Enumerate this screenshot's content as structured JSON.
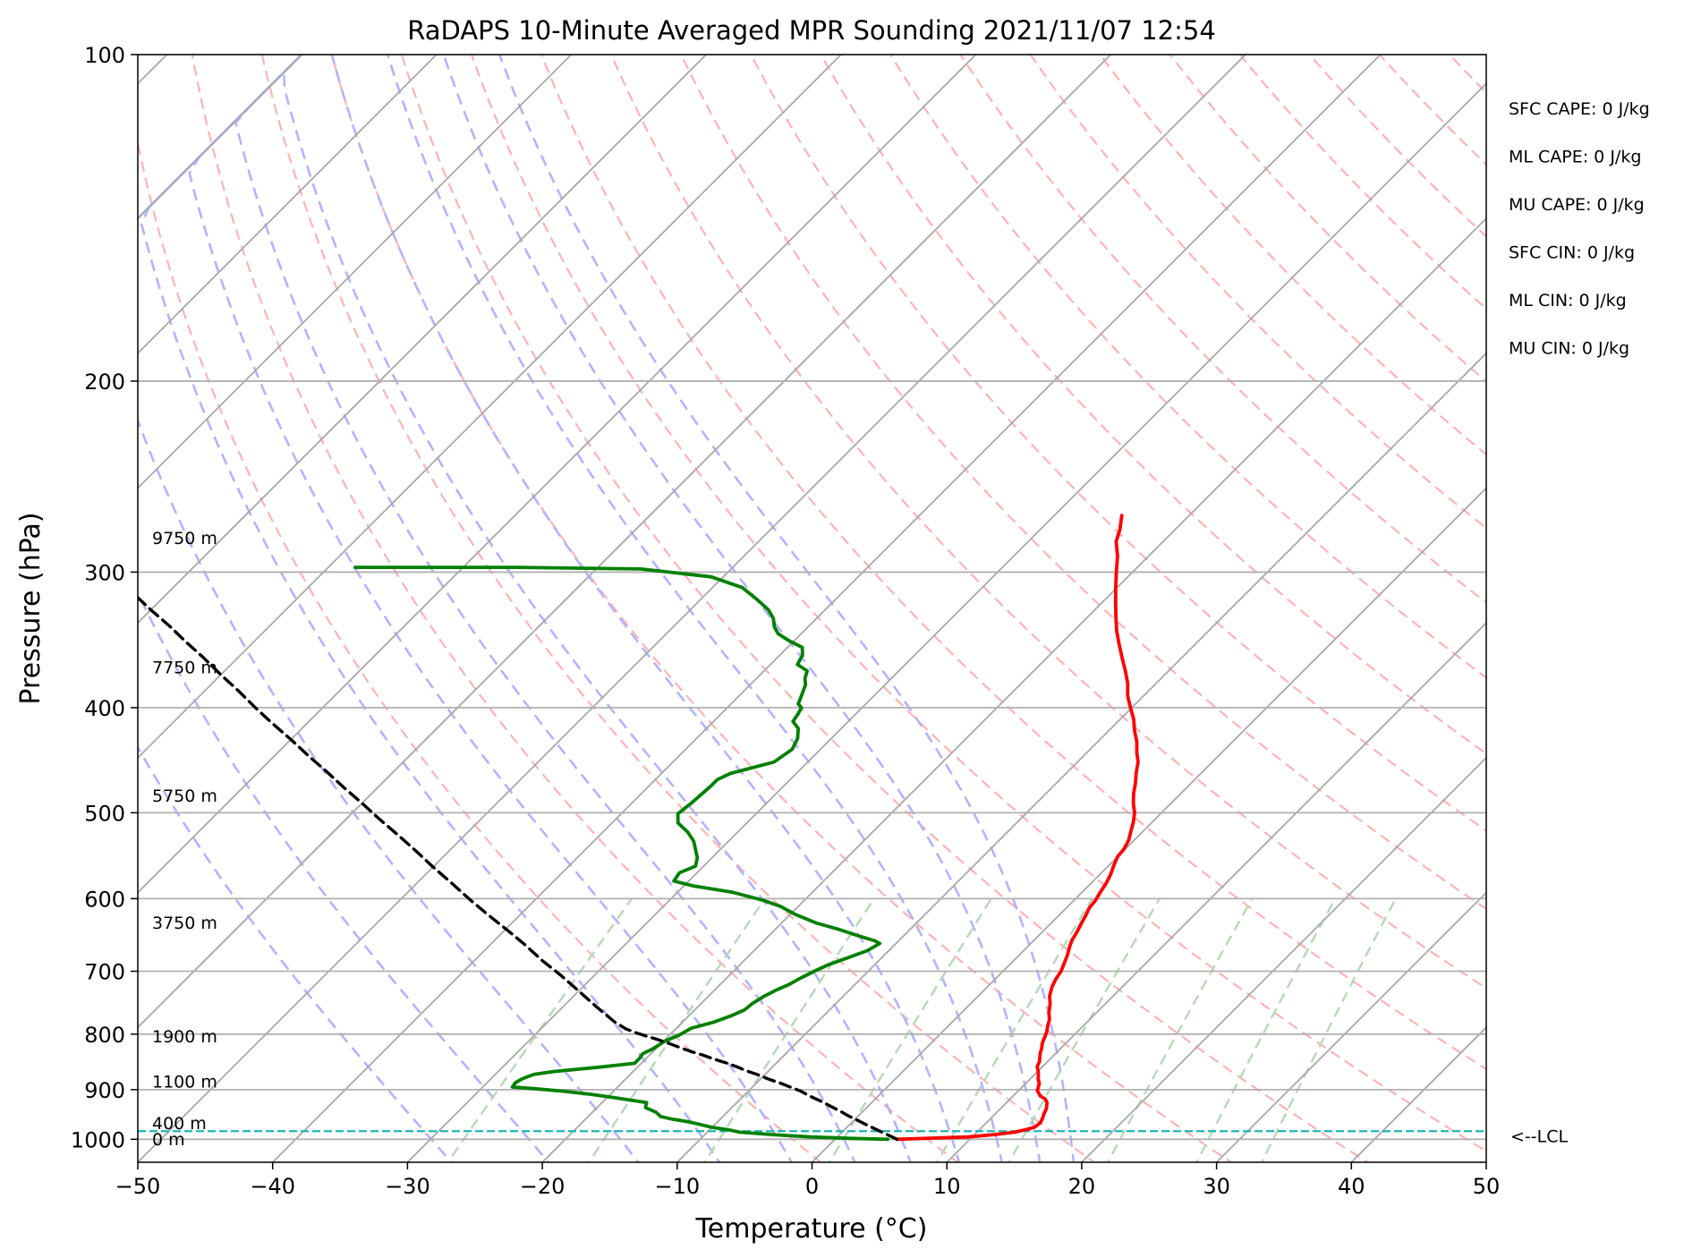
{
  "chart_data": {
    "type": "line",
    "title": "RaDAPS 10-Minute Averaged MPR Sounding 2021/11/07 12:54",
    "xlabel": "Temperature (°C)",
    "ylabel": "Pressure (hPa)",
    "xlim": [
      -50,
      50
    ],
    "ylim": [
      1050,
      100
    ],
    "y_scale": "log",
    "x_ticks": [
      -50,
      -40,
      -30,
      -20,
      -10,
      0,
      10,
      20,
      30,
      40,
      50
    ],
    "x_tick_labels": [
      "−50",
      "−40",
      "−30",
      "−20",
      "−10",
      "0",
      "10",
      "20",
      "30",
      "40",
      "50"
    ],
    "y_ticks": [
      1000,
      900,
      800,
      700,
      600,
      500,
      400,
      300,
      200,
      100
    ],
    "y_tick_labels": [
      "1000",
      "900",
      "800",
      "700",
      "600",
      "500",
      "400",
      "300",
      "200",
      "100"
    ],
    "grid": true,
    "skew": true,
    "series": [
      {
        "role": "temperature",
        "color": "#ff0000",
        "points": [
          [
            4.6,
            1000
          ],
          [
            9.7,
            995
          ],
          [
            11.5,
            990
          ],
          [
            12.8,
            985
          ],
          [
            13.4,
            980
          ],
          [
            13.9,
            975
          ],
          [
            14.0,
            965
          ],
          [
            13.8,
            955
          ],
          [
            13.6,
            947
          ],
          [
            13.4,
            937
          ],
          [
            13.0,
            925
          ],
          [
            12.6,
            918
          ],
          [
            12.0,
            912
          ],
          [
            11.4,
            902
          ],
          [
            11.2,
            895
          ],
          [
            11.0,
            888
          ],
          [
            10.6,
            880
          ],
          [
            10.3,
            872
          ],
          [
            10.0,
            865
          ],
          [
            9.6,
            857
          ],
          [
            9.4,
            848
          ],
          [
            9.1,
            840
          ],
          [
            8.8,
            832
          ],
          [
            8.6,
            825
          ],
          [
            8.3,
            817
          ],
          [
            8.1,
            810
          ],
          [
            7.9,
            802
          ],
          [
            7.7,
            795
          ],
          [
            7.4,
            787
          ],
          [
            7.0,
            775
          ],
          [
            6.5,
            765
          ],
          [
            5.9,
            750
          ],
          [
            5.3,
            738
          ],
          [
            4.8,
            724
          ],
          [
            4.5,
            712
          ],
          [
            4.3,
            700
          ],
          [
            4.0,
            690
          ],
          [
            3.6,
            677
          ],
          [
            3.1,
            664
          ],
          [
            2.8,
            655
          ],
          [
            2.6,
            645
          ],
          [
            2.3,
            634
          ],
          [
            2.0,
            622
          ],
          [
            1.7,
            612
          ],
          [
            1.6,
            602
          ],
          [
            1.4,
            594
          ],
          [
            1.1,
            580
          ],
          [
            0.8,
            570
          ],
          [
            0.4,
            560
          ],
          [
            0.0,
            549
          ],
          [
            -0.1,
            540
          ],
          [
            -0.4,
            530
          ],
          [
            -0.9,
            520
          ],
          [
            -1.4,
            510
          ],
          [
            -2.0,
            500
          ],
          [
            -2.8,
            490
          ],
          [
            -3.5,
            480
          ],
          [
            -4.1,
            470
          ],
          [
            -4.8,
            460
          ],
          [
            -5.5,
            449
          ],
          [
            -6.3,
            440
          ],
          [
            -7.1,
            430
          ],
          [
            -8.1,
            420
          ],
          [
            -9.0,
            410
          ],
          [
            -10.1,
            400
          ],
          [
            -11.2,
            390
          ],
          [
            -12.1,
            380
          ],
          [
            -13.2,
            370
          ],
          [
            -14.4,
            360
          ],
          [
            -15.6,
            350
          ],
          [
            -16.8,
            340
          ],
          [
            -17.9,
            330
          ],
          [
            -19.0,
            320
          ],
          [
            -20.1,
            310
          ],
          [
            -21.2,
            300
          ],
          [
            -22.3,
            290
          ],
          [
            -23.5,
            281
          ],
          [
            -24.1,
            274
          ],
          [
            -25.0,
            266
          ]
        ]
      },
      {
        "role": "dewpoint",
        "color": "#008000",
        "points": [
          [
            3.9,
            1000
          ],
          [
            1.1,
            998
          ],
          [
            -2.0,
            995
          ],
          [
            -5.1,
            990
          ],
          [
            -7.6,
            985
          ],
          [
            -8.6,
            980
          ],
          [
            -10.0,
            975
          ],
          [
            -11.3,
            968
          ],
          [
            -12.3,
            963
          ],
          [
            -13.6,
            958
          ],
          [
            -14.6,
            953
          ],
          [
            -15.3,
            944
          ],
          [
            -16.4,
            935
          ],
          [
            -16.7,
            925
          ],
          [
            -19.6,
            915
          ],
          [
            -21.4,
            909
          ],
          [
            -23.7,
            903
          ],
          [
            -26.1,
            898
          ],
          [
            -27.8,
            895
          ],
          [
            -27.9,
            887
          ],
          [
            -27.7,
            880
          ],
          [
            -27.4,
            875
          ],
          [
            -27.1,
            871
          ],
          [
            -25.9,
            866
          ],
          [
            -22.8,
            858
          ],
          [
            -20.5,
            851
          ],
          [
            -20.5,
            842
          ],
          [
            -20.6,
            834
          ],
          [
            -20.2,
            825
          ],
          [
            -19.9,
            812
          ],
          [
            -19.3,
            802
          ],
          [
            -18.9,
            790
          ],
          [
            -17.7,
            780
          ],
          [
            -16.9,
            770
          ],
          [
            -16.3,
            760
          ],
          [
            -16.2,
            750
          ],
          [
            -15.9,
            739
          ],
          [
            -15.4,
            728
          ],
          [
            -14.9,
            720
          ],
          [
            -14.5,
            710
          ],
          [
            -14.0,
            700
          ],
          [
            -13.4,
            690
          ],
          [
            -12.5,
            680
          ],
          [
            -11.6,
            670
          ],
          [
            -11.2,
            660
          ],
          [
            -11.8,
            656
          ],
          [
            -13.2,
            650
          ],
          [
            -15.4,
            640
          ],
          [
            -17.4,
            632
          ],
          [
            -19.7,
            620
          ],
          [
            -21.3,
            610
          ],
          [
            -23.1,
            602
          ],
          [
            -25.9,
            592
          ],
          [
            -29.3,
            584
          ],
          [
            -31.1,
            578
          ],
          [
            -31.3,
            568
          ],
          [
            -30.6,
            560
          ],
          [
            -31.1,
            550
          ],
          [
            -31.8,
            541
          ],
          [
            -32.6,
            531
          ],
          [
            -33.7,
            521
          ],
          [
            -35.1,
            511
          ],
          [
            -35.8,
            501
          ],
          [
            -35.6,
            491
          ],
          [
            -35.5,
            482
          ],
          [
            -35.4,
            472
          ],
          [
            -35.4,
            466
          ],
          [
            -34.9,
            460
          ],
          [
            -32.5,
            449
          ],
          [
            -32.1,
            437
          ],
          [
            -32.5,
            427
          ],
          [
            -33.2,
            418
          ],
          [
            -34.1,
            412
          ],
          [
            -34.3,
            405
          ],
          [
            -34.5,
            400
          ],
          [
            -35.0,
            397
          ],
          [
            -35.5,
            388
          ],
          [
            -35.9,
            381
          ],
          [
            -36.4,
            376
          ],
          [
            -36.8,
            370
          ],
          [
            -38.0,
            365
          ],
          [
            -38.3,
            358
          ],
          [
            -38.9,
            352
          ],
          [
            -40.4,
            347
          ],
          [
            -41.7,
            342
          ],
          [
            -42.5,
            337
          ],
          [
            -43.2,
            331
          ],
          [
            -44.2,
            325
          ],
          [
            -45.8,
            318
          ],
          [
            -47.8,
            310
          ],
          [
            -50.9,
            303
          ],
          [
            -56.7,
            298
          ],
          [
            -66.0,
            297
          ],
          [
            -78.0,
            297
          ]
        ]
      },
      {
        "role": "parcel",
        "color": "#000000",
        "style": "dashed",
        "points": [
          [
            4.6,
            1000
          ],
          [
            2.4,
            980
          ],
          [
            1.3,
            970
          ],
          [
            0.2,
            960
          ],
          [
            -0.9,
            950
          ],
          [
            -1.6,
            943
          ],
          [
            -2.7,
            933
          ],
          [
            -3.8,
            923
          ],
          [
            -5.0,
            913
          ],
          [
            -6.1,
            903
          ],
          [
            -7.2,
            895
          ],
          [
            -8.3,
            887
          ],
          [
            -9.4,
            880
          ],
          [
            -10.5,
            872
          ],
          [
            -11.6,
            865
          ],
          [
            -12.7,
            857
          ],
          [
            -13.8,
            850
          ],
          [
            -15.0,
            843
          ],
          [
            -16.1,
            836
          ],
          [
            -17.2,
            830
          ],
          [
            -18.3,
            823
          ],
          [
            -19.4,
            816
          ],
          [
            -20.4,
            810
          ],
          [
            -21.5,
            804
          ],
          [
            -22.6,
            798
          ],
          [
            -23.7,
            791
          ],
          [
            -25.0,
            780
          ],
          [
            -27.5,
            755
          ],
          [
            -30.0,
            730
          ],
          [
            -32.5,
            706
          ],
          [
            -35.0,
            684
          ],
          [
            -37.5,
            661
          ],
          [
            -40.0,
            640
          ],
          [
            -42.5,
            620
          ],
          [
            -45.0,
            600
          ],
          [
            -47.5,
            580
          ],
          [
            -50.0,
            561
          ],
          [
            -52.5,
            542
          ],
          [
            -55.0,
            524
          ],
          [
            -57.5,
            507
          ],
          [
            -60.0,
            490
          ],
          [
            -62.5,
            474
          ],
          [
            -65.0,
            458
          ],
          [
            -67.5,
            443
          ],
          [
            -70.0,
            428
          ],
          [
            -72.5,
            414
          ],
          [
            -75.0,
            400
          ],
          [
            -77.5,
            386
          ],
          [
            -80.0,
            373
          ],
          [
            -82.5,
            360
          ],
          [
            -85.0,
            348
          ],
          [
            -87.5,
            336
          ],
          [
            -90.0,
            325
          ],
          [
            -92.5,
            314
          ],
          [
            -95.0,
            303
          ],
          [
            -97.5,
            293
          ],
          [
            -100.0,
            283
          ],
          [
            -102.5,
            273
          ],
          [
            -105.0,
            266
          ]
        ]
      }
    ],
    "lcl": {
      "pressure": 983,
      "label": "<--LCL"
    },
    "height_labels": [
      {
        "text": "9750 m",
        "pressure": 279
      },
      {
        "text": "7750 m",
        "pressure": 367
      },
      {
        "text": "5750 m",
        "pressure": 482
      },
      {
        "text": "3750 m",
        "pressure": 631
      },
      {
        "text": "1900 m",
        "pressure": 803
      },
      {
        "text": "1100 m",
        "pressure": 884
      },
      {
        "text": "400 m",
        "pressure": 966
      },
      {
        "text": "0 m",
        "pressure": 999
      }
    ],
    "stats": [
      "SFC CAPE: 0 J/kg",
      "ML CAPE: 0 J/kg",
      "MU CAPE: 0 J/kg",
      "SFC CIN: 0 J/kg",
      "ML CIN: 0 J/kg",
      "MU CIN: 0 J/kg"
    ],
    "colors": {
      "isotherm": "#a8a8a8",
      "dry_adiabat": "#ffb3b3",
      "moist_adiabat": "#b3b3ff",
      "mixing_ratio": "#b5d9b5",
      "lcl_line": "#1fb5b5",
      "grid": "#b0b0b0"
    },
    "dry_adiabat_theta_k": [
      270,
      280,
      290,
      300,
      310,
      320,
      330,
      340,
      350,
      360,
      370,
      380,
      390,
      400,
      410,
      420,
      430,
      440,
      450,
      460,
      470
    ],
    "moist_adiabat_thetae_k": [
      244,
      252,
      260,
      268,
      276,
      284,
      292,
      300,
      308,
      316,
      324
    ],
    "mixing_ratios_gkg": [
      0.4,
      1,
      2,
      4,
      7,
      10,
      16,
      24,
      32
    ]
  }
}
